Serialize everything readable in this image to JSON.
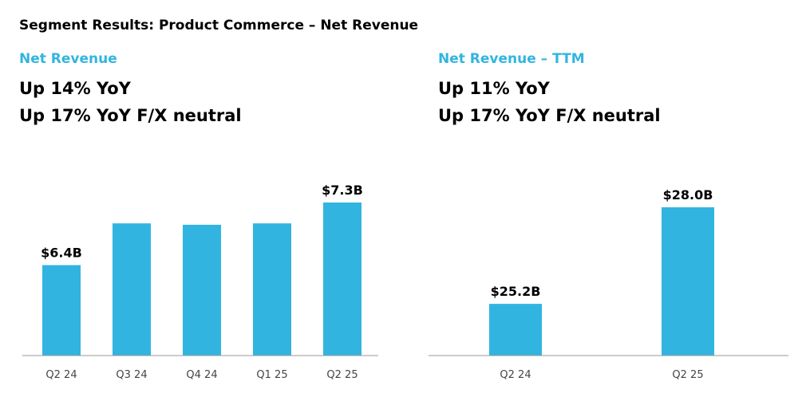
{
  "title": "Segment Results: Product Commerce – Net Revenue",
  "colors": {
    "accent": "#31B5E0",
    "bar": "#31B5E0",
    "axis": "#999999"
  },
  "left_panel": {
    "title": "Net Revenue",
    "lines": [
      "Up 14% YoY",
      "Up 17% YoY F/X neutral"
    ]
  },
  "right_panel": {
    "title": "Net Revenue – TTM",
    "lines": [
      "Up 11% YoY",
      "Up 17% YoY F/X neutral"
    ]
  },
  "chart_data": [
    {
      "type": "bar",
      "title": "Net Revenue",
      "categories": [
        "Q2 24",
        "Q3 24",
        "Q4 24",
        "Q1 25",
        "Q2 25"
      ],
      "values": [
        6.4,
        7.0,
        6.98,
        7.0,
        7.3
      ],
      "unit": "$B",
      "data_labels": [
        "$6.4B",
        "",
        "",
        "",
        "$7.3B"
      ],
      "ylim": [
        5.1,
        7.3
      ],
      "grid": false
    },
    {
      "type": "bar",
      "title": "Net Revenue – TTM",
      "categories": [
        "Q2 24",
        "Q2 25"
      ],
      "values": [
        25.2,
        28.0
      ],
      "unit": "$B",
      "data_labels": [
        "$25.2B",
        "$28.0B"
      ],
      "ylim": [
        23.7,
        28.0
      ],
      "grid": false
    }
  ]
}
